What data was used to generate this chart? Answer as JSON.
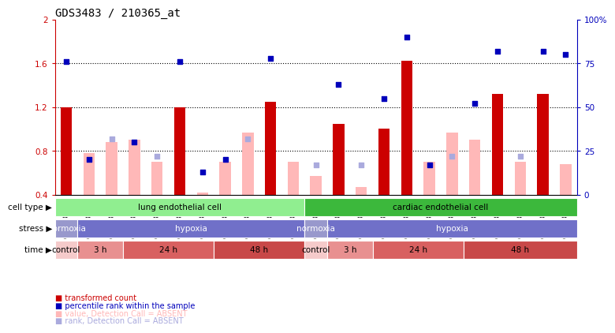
{
  "title": "GDS3483 / 210365_at",
  "samples": [
    "GSM286407",
    "GSM286410",
    "GSM286414",
    "GSM286411",
    "GSM286415",
    "GSM286408",
    "GSM286412",
    "GSM286416",
    "GSM286409",
    "GSM286413",
    "GSM286417",
    "GSM286418",
    "GSM286422",
    "GSM286426",
    "GSM286419",
    "GSM286423",
    "GSM286427",
    "GSM286420",
    "GSM286424",
    "GSM286428",
    "GSM286421",
    "GSM286425",
    "GSM286429"
  ],
  "bar_values": [
    1.2,
    0.78,
    0.88,
    0.9,
    0.7,
    1.2,
    0.42,
    0.7,
    0.97,
    1.25,
    0.7,
    0.57,
    1.05,
    0.47,
    1.0,
    1.62,
    0.7,
    0.97,
    0.9,
    1.32,
    0.7,
    1.32,
    0.68
  ],
  "bar_absent": [
    false,
    true,
    true,
    true,
    true,
    false,
    true,
    true,
    true,
    false,
    true,
    true,
    false,
    true,
    false,
    false,
    true,
    true,
    true,
    false,
    true,
    false,
    true
  ],
  "rank_values": [
    76,
    20,
    32,
    30,
    22,
    76,
    13,
    20,
    32,
    78,
    null,
    17,
    63,
    17,
    55,
    90,
    17,
    22,
    52,
    82,
    22,
    82,
    80
  ],
  "rank_absent": [
    false,
    false,
    true,
    false,
    true,
    false,
    false,
    false,
    true,
    false,
    false,
    true,
    false,
    true,
    false,
    false,
    false,
    true,
    false,
    false,
    true,
    false,
    false
  ],
  "ylim_left": [
    0.4,
    2.0
  ],
  "ylim_right": [
    0,
    100
  ],
  "yticks_left": [
    0.4,
    0.8,
    1.2,
    1.6,
    2.0
  ],
  "yticks_right": [
    0,
    25,
    50,
    75,
    100
  ],
  "ytick_labels_left": [
    "0.4",
    "0.8",
    "1.2",
    "1.6",
    "2"
  ],
  "ytick_labels_right": [
    "0",
    "25",
    "50",
    "75",
    "100%"
  ],
  "hgrid_lines": [
    0.8,
    1.2,
    1.6
  ],
  "cell_type_regions": [
    {
      "label": "lung endothelial cell",
      "start": 0,
      "end": 11,
      "color": "#90EE90"
    },
    {
      "label": "cardiac endothelial cell",
      "start": 11,
      "end": 23,
      "color": "#3CB83C"
    }
  ],
  "stress_regions": [
    {
      "label": "normoxia",
      "start": 0,
      "end": 1,
      "color": "#9898CC"
    },
    {
      "label": "hypoxia",
      "start": 1,
      "end": 11,
      "color": "#7070C8"
    },
    {
      "label": "normoxia",
      "start": 11,
      "end": 12,
      "color": "#9898CC"
    },
    {
      "label": "hypoxia",
      "start": 12,
      "end": 23,
      "color": "#7070C8"
    }
  ],
  "time_regions": [
    {
      "label": "control",
      "start": 0,
      "end": 1,
      "color": "#F5CACA"
    },
    {
      "label": "3 h",
      "start": 1,
      "end": 3,
      "color": "#E89090"
    },
    {
      "label": "24 h",
      "start": 3,
      "end": 7,
      "color": "#D86060"
    },
    {
      "label": "48 h",
      "start": 7,
      "end": 11,
      "color": "#C84848"
    },
    {
      "label": "control",
      "start": 11,
      "end": 12,
      "color": "#F5CACA"
    },
    {
      "label": "3 h",
      "start": 12,
      "end": 14,
      "color": "#E89090"
    },
    {
      "label": "24 h",
      "start": 14,
      "end": 18,
      "color": "#D86060"
    },
    {
      "label": "48 h",
      "start": 18,
      "end": 23,
      "color": "#C84848"
    }
  ],
  "bar_width": 0.5,
  "red_color": "#CC0000",
  "pink_color": "#FFB8B8",
  "blue_color": "#0000BB",
  "lavender_color": "#AAAADD",
  "bg_color": "#FFFFFF",
  "tick_color_left": "#CC0000",
  "tick_color_right": "#0000BB",
  "label_fontsize": 7.5,
  "title_fontsize": 10,
  "legend_fontsize": 7,
  "sample_fontsize": 6,
  "row_label_fontsize": 7.5,
  "row_text_fontsize": 7.5
}
